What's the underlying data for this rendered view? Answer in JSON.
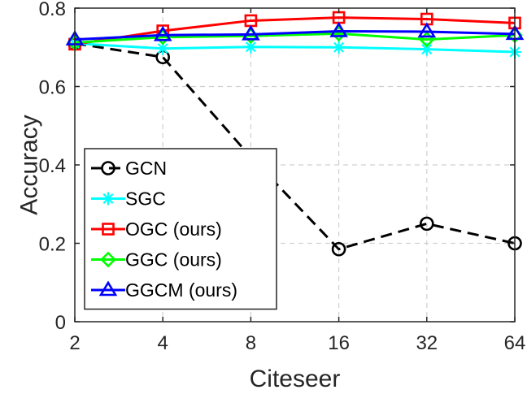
{
  "chart_data": {
    "type": "line",
    "title": "",
    "xlabel": "Citeseer",
    "ylabel": "Accuracy",
    "categories": [
      "2",
      "4",
      "8",
      "16",
      "32",
      "64"
    ],
    "ylim": [
      0,
      0.8
    ],
    "yticks": [
      0,
      0.2,
      0.4,
      0.6,
      0.8
    ],
    "ytick_labels": [
      "0",
      "0.2",
      "0.4",
      "0.6",
      "0.8"
    ],
    "grid": true,
    "legend_position": "lower-left",
    "series": [
      {
        "name": "GCN",
        "color": "#000000",
        "marker": "circle",
        "line": "dashed",
        "values": [
          0.71,
          0.675,
          0.42,
          0.185,
          0.25,
          0.2
        ]
      },
      {
        "name": "SGC",
        "color": "#00ffff",
        "marker": "asterisk",
        "line": "solid",
        "values": [
          0.71,
          0.697,
          0.701,
          0.7,
          0.695,
          0.688
        ]
      },
      {
        "name": "OGC (ours)",
        "color": "#ff0000",
        "marker": "square",
        "line": "solid",
        "values": [
          0.708,
          0.742,
          0.768,
          0.776,
          0.772,
          0.762
        ]
      },
      {
        "name": "GGC (ours)",
        "color": "#00ff00",
        "marker": "diamond",
        "line": "solid",
        "values": [
          0.712,
          0.726,
          0.729,
          0.735,
          0.72,
          0.731
        ]
      },
      {
        "name": "GGCM (ours)",
        "color": "#0000ff",
        "marker": "triangle",
        "line": "solid",
        "values": [
          0.72,
          0.731,
          0.733,
          0.741,
          0.74,
          0.734
        ]
      }
    ]
  }
}
